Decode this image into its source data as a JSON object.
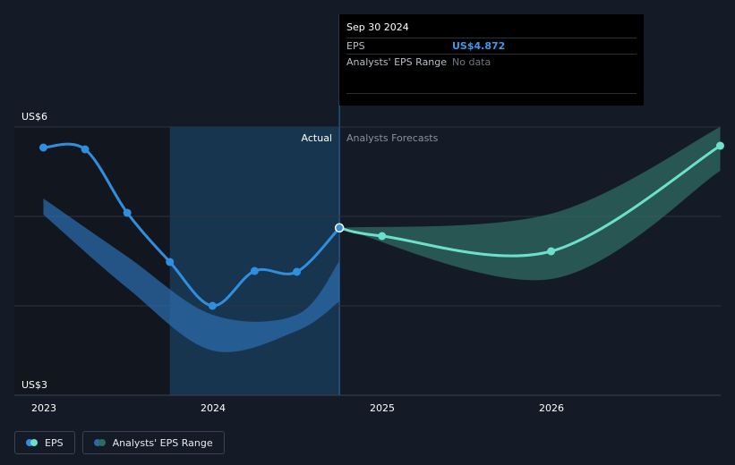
{
  "tooltip": {
    "date": "Sep 30 2024",
    "eps_label": "EPS",
    "eps_value": "US$4.872",
    "range_label": "Analysts' EPS Range",
    "range_value": "No data"
  },
  "legend": {
    "eps_label": "EPS",
    "range_label": "Analysts' EPS Range"
  },
  "colors": {
    "background": "#151b26",
    "actual": "#2f8fde",
    "forecast": "#6de0cc",
    "actual_band": "#2a6aa8",
    "forecast_band": "#2f6b62",
    "highlight": "#183550",
    "gridline": "#2c3340"
  },
  "chart_data": {
    "type": "line",
    "title": "",
    "xlabel": "",
    "ylabel": "",
    "y_unit": "US$",
    "ylim": [
      3,
      6
    ],
    "y_tick_labels": [
      "US$6",
      "US$3"
    ],
    "x_tick_labels": [
      "2023",
      "2024",
      "2025",
      "2026"
    ],
    "region_labels": {
      "actual": "Actual",
      "forecast": "Analysts Forecasts"
    },
    "grid": true,
    "series": [
      {
        "name": "EPS",
        "kind": "actual",
        "points": [
          {
            "x": "2022-12-31",
            "y": 5.77
          },
          {
            "x": "2023-03-31",
            "y": 5.75
          },
          {
            "x": "2023-06-30",
            "y": 5.04
          },
          {
            "x": "2023-09-30",
            "y": 4.49
          },
          {
            "x": "2023-12-31",
            "y": 4.0
          },
          {
            "x": "2024-03-31",
            "y": 4.39
          },
          {
            "x": "2024-06-30",
            "y": 4.38
          },
          {
            "x": "2024-09-30",
            "y": 4.872
          }
        ]
      },
      {
        "name": "EPS",
        "kind": "forecast",
        "points": [
          {
            "x": "2024-09-30",
            "y": 4.872
          },
          {
            "x": "2024-12-31",
            "y": 4.78
          },
          {
            "x": "2025-12-31",
            "y": 4.61
          },
          {
            "x": "2026-12-31",
            "y": 5.79
          }
        ]
      }
    ],
    "bands": [
      {
        "name": "Analysts' EPS Range",
        "kind": "actual",
        "upper": [
          {
            "x": "2022-12-31",
            "y": 5.2
          },
          {
            "x": "2023-06-30",
            "y": 4.55
          },
          {
            "x": "2023-12-31",
            "y": 3.9
          },
          {
            "x": "2024-06-30",
            "y": 3.9
          },
          {
            "x": "2024-09-30",
            "y": 4.5
          }
        ],
        "lower": [
          {
            "x": "2022-12-31",
            "y": 5.02
          },
          {
            "x": "2023-06-30",
            "y": 4.2
          },
          {
            "x": "2023-12-31",
            "y": 3.5
          },
          {
            "x": "2024-06-30",
            "y": 3.72
          },
          {
            "x": "2024-09-30",
            "y": 4.05
          }
        ]
      },
      {
        "name": "Analysts' EPS Range",
        "kind": "forecast",
        "upper": [
          {
            "x": "2024-09-30",
            "y": 4.872
          },
          {
            "x": "2025-12-31",
            "y": 5.03
          },
          {
            "x": "2026-12-31",
            "y": 6.0
          }
        ],
        "lower": [
          {
            "x": "2024-09-30",
            "y": 4.872
          },
          {
            "x": "2025-12-31",
            "y": 4.3
          },
          {
            "x": "2026-12-31",
            "y": 5.51
          }
        ]
      }
    ],
    "highlight_range": [
      "2023-09-30",
      "2024-09-30"
    ]
  }
}
